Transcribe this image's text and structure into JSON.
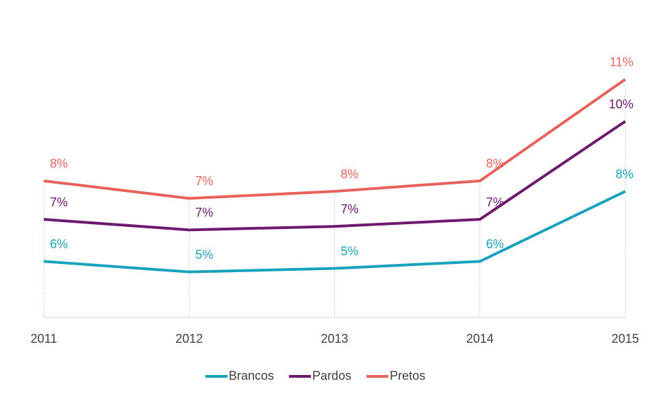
{
  "chart_data": {
    "type": "line",
    "categories": [
      "2011",
      "2012",
      "2013",
      "2014",
      "2015"
    ],
    "series": [
      {
        "name": "Brancos",
        "color": "#18a3bd",
        "values": [
          5.6,
          5.3,
          5.4,
          5.6,
          7.6
        ],
        "value_labels": [
          "6%",
          "5%",
          "5%",
          "6%",
          "8%"
        ]
      },
      {
        "name": "Pardos",
        "color": "#6d1a6e",
        "values": [
          6.8,
          6.5,
          6.6,
          6.8,
          9.6
        ],
        "value_labels": [
          "7%",
          "7%",
          "7%",
          "7%",
          "10%"
        ]
      },
      {
        "name": "Pretos",
        "color": "#e9615b",
        "values": [
          7.9,
          7.4,
          7.6,
          7.9,
          10.8
        ],
        "value_labels": [
          "8%",
          "7%",
          "8%",
          "8%",
          "11%"
        ]
      }
    ],
    "ylim": [
      4,
      11.5
    ],
    "legend": "bottom",
    "grid": true
  }
}
